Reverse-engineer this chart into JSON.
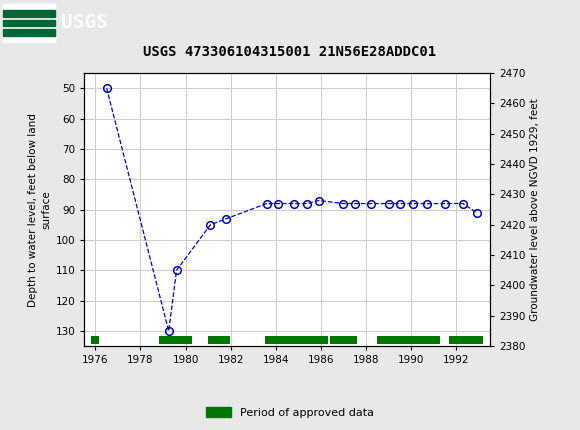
{
  "title": "USGS 473306104315001 21N56E28ADDC01",
  "ylabel_left": "Depth to water level, feet below land\nsurface",
  "ylabel_right": "Groundwater level above NGVD 1929, feet",
  "background_color": "#e8e8e8",
  "plot_bg_color": "#ffffff",
  "header_color": "#006633",
  "data_x": [
    1976.5,
    1979.25,
    1979.6,
    1981.1,
    1981.8,
    1983.6,
    1984.1,
    1984.8,
    1985.4,
    1985.9,
    1987.0,
    1987.5,
    1988.2,
    1989.0,
    1989.5,
    1990.1,
    1990.7,
    1991.5,
    1992.3,
    1992.9
  ],
  "data_y": [
    50,
    130,
    110,
    95,
    93,
    88,
    88,
    88,
    88,
    87,
    88,
    88,
    88,
    88,
    88,
    88,
    88,
    88,
    88,
    91
  ],
  "ylim_left_bottom": 135,
  "ylim_left_top": 45,
  "ylim_right_bottom": 2380,
  "ylim_right_top": 2470,
  "xlim_left": 1975.5,
  "xlim_right": 1993.5,
  "xticks": [
    1976,
    1978,
    1980,
    1982,
    1984,
    1986,
    1988,
    1990,
    1992
  ],
  "yticks_left": [
    50,
    60,
    70,
    80,
    90,
    100,
    110,
    120,
    130
  ],
  "yticks_right": [
    2380,
    2390,
    2400,
    2410,
    2420,
    2430,
    2440,
    2450,
    2460,
    2470
  ],
  "line_color": "#0000cc",
  "marker_color": "#0000cc",
  "grid_color": "#cccccc",
  "legend_label": "Period of approved data",
  "legend_color": "#007700",
  "approved_bars": [
    [
      1975.8,
      1976.15
    ],
    [
      1978.8,
      1980.3
    ],
    [
      1981.0,
      1981.95
    ],
    [
      1983.5,
      1986.3
    ],
    [
      1986.4,
      1987.6
    ],
    [
      1988.5,
      1991.3
    ],
    [
      1991.7,
      1993.2
    ]
  ],
  "bar_y_depth": 133,
  "bar_height_depth": 2.5
}
